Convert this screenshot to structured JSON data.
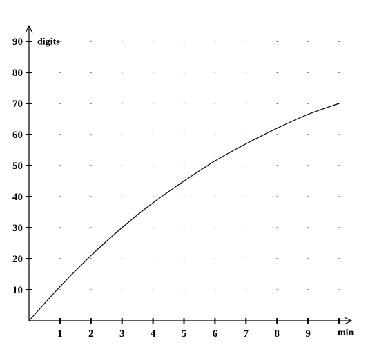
{
  "chart_data": {
    "type": "line",
    "xlabel": "min",
    "ylabel": "digits",
    "x_ticks": [
      "1",
      "2",
      "3",
      "4",
      "5",
      "6",
      "7",
      "8",
      "9"
    ],
    "y_ticks": [
      "10",
      "20",
      "30",
      "40",
      "50",
      "60",
      "70",
      "80",
      "90"
    ],
    "xlim": [
      0,
      10.4
    ],
    "ylim": [
      0,
      95
    ],
    "grid": "dotted",
    "series": [
      {
        "x": [
          0,
          1,
          2,
          3,
          4,
          5,
          6,
          7,
          8,
          9,
          10
        ],
        "y": [
          0,
          11,
          21,
          30,
          38,
          45,
          51.5,
          57,
          62,
          66.5,
          70
        ]
      }
    ]
  }
}
